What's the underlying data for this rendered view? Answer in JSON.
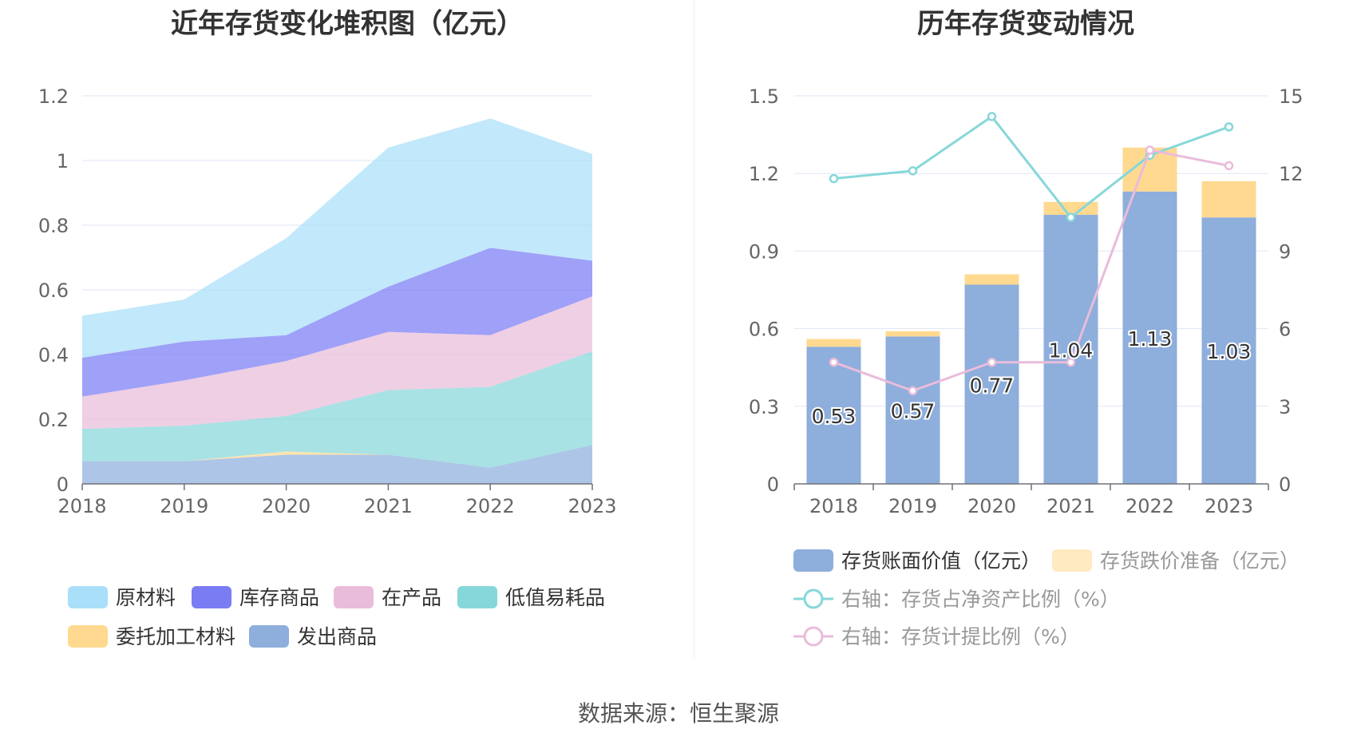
{
  "left_title": "近年存货变化堆积图（亿元）",
  "right_title": "历年存货变动情况",
  "source": "数据来源：恒生聚源",
  "chart_data": [
    {
      "type": "area",
      "stacked": true,
      "title": "近年存货变化堆积图（亿元）",
      "x": [
        "2018",
        "2019",
        "2020",
        "2021",
        "2022",
        "2023"
      ],
      "ylim": [
        0,
        1.2
      ],
      "yticks": [
        "0",
        "0.2",
        "0.4",
        "0.6",
        "0.8",
        "1",
        "1.2"
      ],
      "grid": true,
      "legend_position": "bottom",
      "series": [
        {
          "name": "发出商品",
          "color": "#8eaedc",
          "values": [
            0.07,
            0.07,
            0.09,
            0.09,
            0.05,
            0.12
          ]
        },
        {
          "name": "委托加工材料",
          "color": "#ffd990",
          "values": [
            0.0,
            0.0,
            0.01,
            0.0,
            0.0,
            0.0
          ]
        },
        {
          "name": "低值易耗品",
          "color": "#86d7d9",
          "values": [
            0.1,
            0.11,
            0.11,
            0.2,
            0.25,
            0.29
          ]
        },
        {
          "name": "在产品",
          "color": "#e9bcda",
          "values": [
            0.1,
            0.14,
            0.17,
            0.18,
            0.16,
            0.17
          ]
        },
        {
          "name": "库存商品",
          "color": "#7a7cf4",
          "values": [
            0.12,
            0.12,
            0.08,
            0.14,
            0.27,
            0.11
          ]
        },
        {
          "name": "原材料",
          "color": "#aadff9",
          "values": [
            0.13,
            0.13,
            0.3,
            0.43,
            0.4,
            0.33
          ]
        }
      ],
      "legend_order": [
        "原材料",
        "库存商品",
        "在产品",
        "低值易耗品",
        "委托加工材料",
        "发出商品"
      ]
    },
    {
      "type": "bar",
      "stacked": true,
      "title": "历年存货变动情况",
      "categories": [
        "2018",
        "2019",
        "2020",
        "2021",
        "2022",
        "2023"
      ],
      "ylim": [
        0,
        1.5
      ],
      "yticks": [
        "0",
        "0.3",
        "0.6",
        "0.9",
        "1.2",
        "1.5"
      ],
      "y2lim": [
        0,
        15
      ],
      "y2ticks": [
        "0",
        "3",
        "6",
        "9",
        "12",
        "15"
      ],
      "grid": true,
      "legend_position": "bottom",
      "series": [
        {
          "name": "存货账面价值（亿元）",
          "color": "#8eaedc",
          "axis": "left",
          "values": [
            0.53,
            0.57,
            0.77,
            1.04,
            1.13,
            1.03
          ],
          "labels": [
            "0.53",
            "0.57",
            "0.77",
            "1.04",
            "1.13",
            "1.03"
          ]
        },
        {
          "name": "存货跌价准备（亿元）",
          "color": "#ffd990",
          "axis": "left",
          "values": [
            0.03,
            0.02,
            0.04,
            0.05,
            0.17,
            0.14
          ]
        },
        {
          "name": "右轴：存货占净资产比例（%）",
          "color": "#86d7d9",
          "axis": "right",
          "kind": "line",
          "values": [
            11.8,
            12.1,
            14.2,
            10.3,
            12.7,
            13.8
          ]
        },
        {
          "name": "右轴：存货计提比例（%）",
          "color": "#e9bcda",
          "axis": "right",
          "kind": "line",
          "values": [
            4.7,
            3.6,
            4.7,
            4.7,
            12.9,
            12.3
          ]
        }
      ]
    }
  ]
}
